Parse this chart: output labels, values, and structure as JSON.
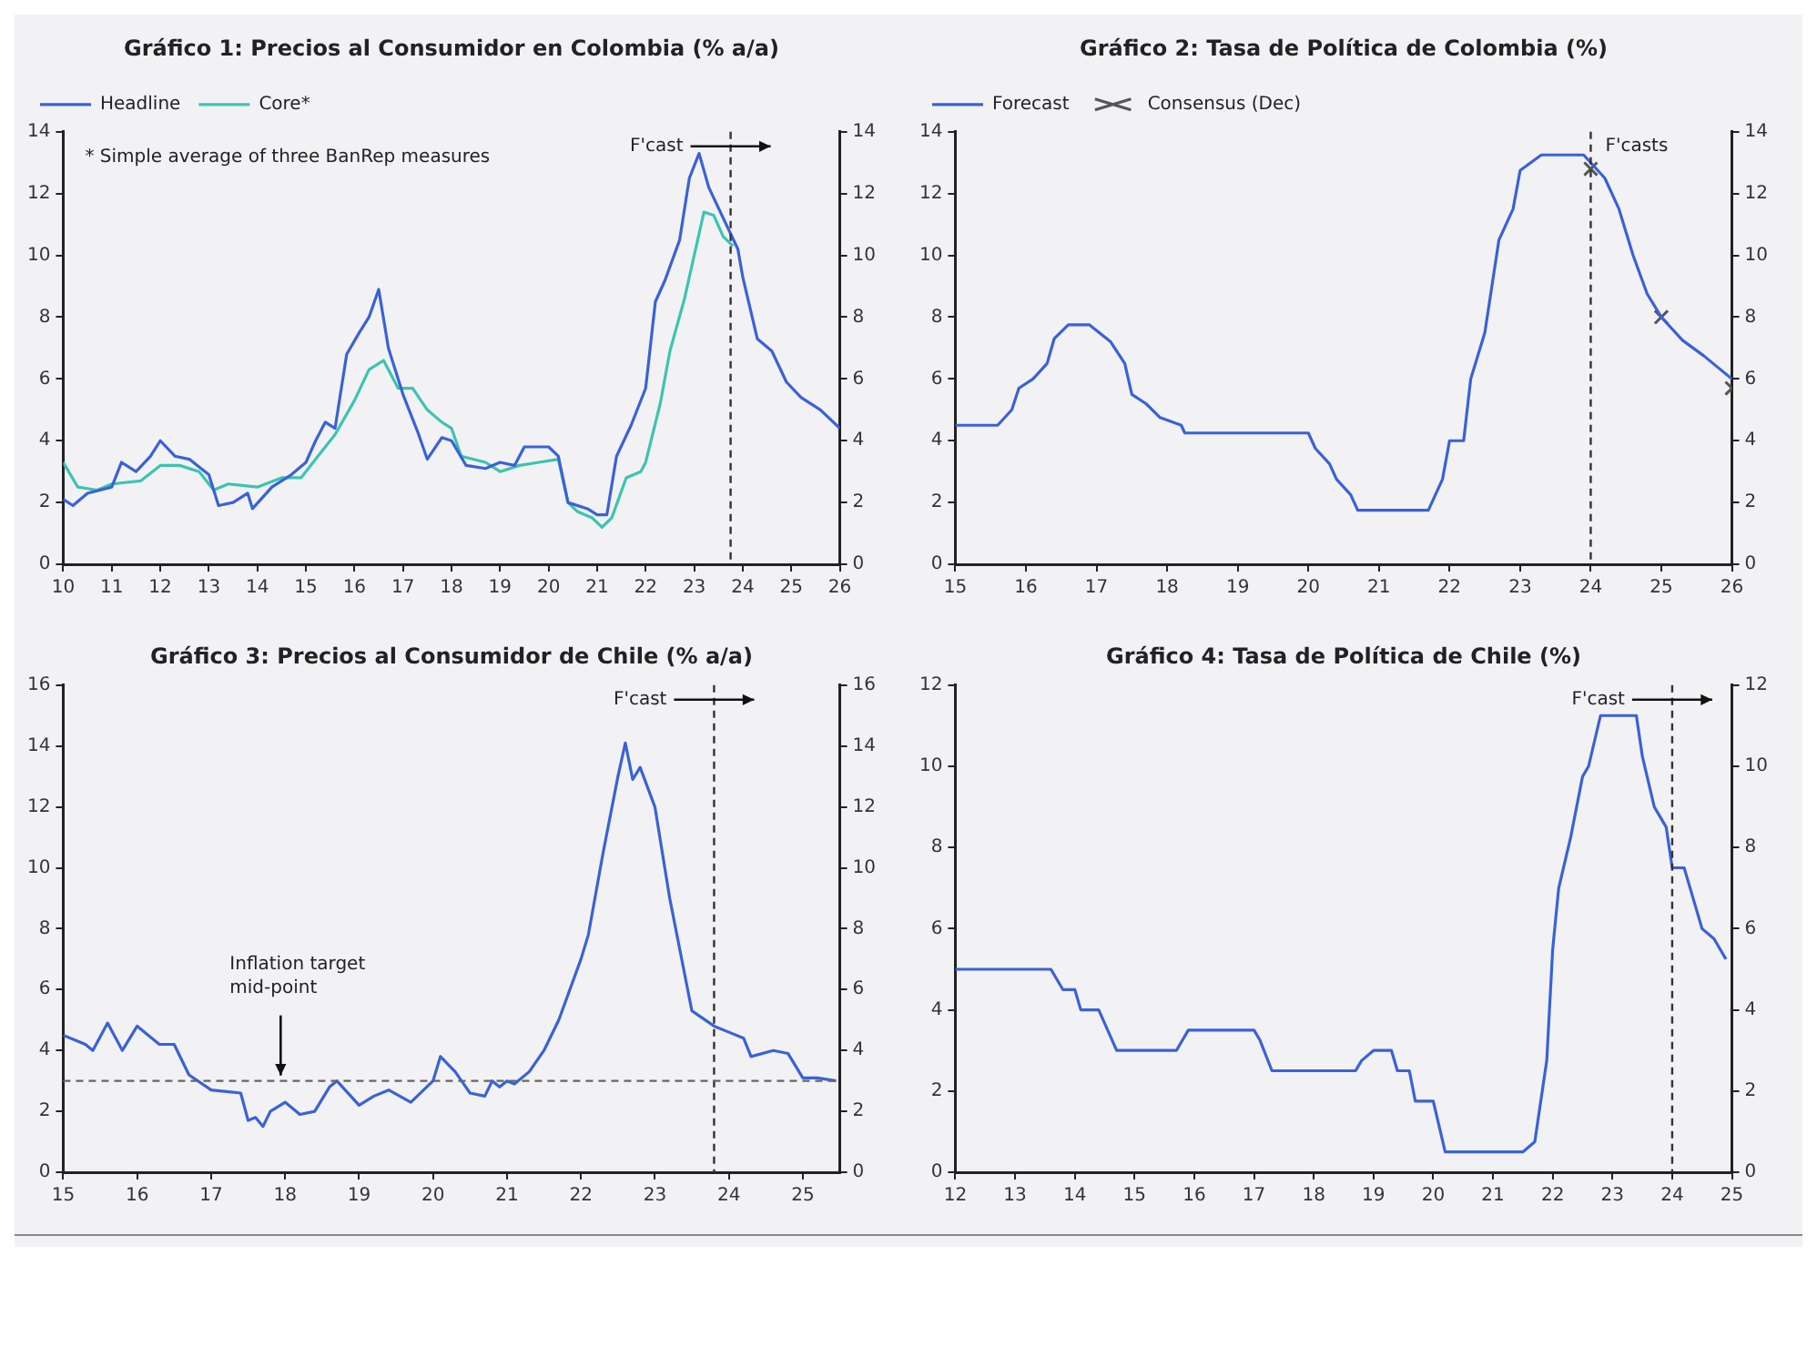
{
  "chart_data": [
    {
      "type": "line",
      "title": "Gráfico 1: Precios al Consumidor en Colombia (% a/a)",
      "xlim": [
        10,
        26
      ],
      "xticks": [
        10,
        11,
        12,
        13,
        14,
        15,
        16,
        17,
        18,
        19,
        20,
        21,
        22,
        23,
        24,
        25,
        26
      ],
      "ylim": [
        0,
        14
      ],
      "yticks": [
        0,
        2,
        4,
        6,
        8,
        10,
        12,
        14
      ],
      "y2lim": [
        0,
        14
      ],
      "y2ticks": [
        0,
        2,
        4,
        6,
        8,
        10,
        12,
        14
      ],
      "legend": "top left",
      "series": [
        {
          "name": "Headline",
          "color": "#3a62d6",
          "x": [
            10,
            10.2,
            10.5,
            11,
            11.2,
            11.5,
            11.8,
            12,
            12.3,
            12.6,
            13,
            13.2,
            13.5,
            13.8,
            13.9,
            14.3,
            14.7,
            15,
            15.2,
            15.4,
            15.6,
            15.84,
            16.1,
            16.3,
            16.5,
            16.7,
            17,
            17.3,
            17.5,
            17.8,
            18,
            18.3,
            18.7,
            19,
            19.3,
            19.5,
            20,
            20.2,
            20.4,
            20.8,
            21,
            21.2,
            21.4,
            21.7,
            22,
            22.2,
            22.4,
            22.7,
            22.9,
            23.1,
            23.3,
            23.6,
            23.9,
            24,
            24.3,
            24.6,
            24.9,
            25.2,
            25.6,
            26
          ],
          "values": [
            2.1,
            1.9,
            2.3,
            2.5,
            3.3,
            3,
            3.5,
            4,
            3.5,
            3.4,
            2.9,
            1.9,
            2,
            2.3,
            1.8,
            2.5,
            2.9,
            3.3,
            4,
            4.6,
            4.4,
            6.8,
            7.5,
            8,
            8.9,
            7,
            5.5,
            4.3,
            3.4,
            4.1,
            4,
            3.2,
            3.1,
            3.3,
            3.2,
            3.8,
            3.8,
            3.5,
            2,
            1.8,
            1.6,
            1.6,
            3.5,
            4.5,
            5.7,
            8.5,
            9.2,
            10.5,
            12.5,
            13.3,
            12.2,
            11.2,
            10.2,
            9.3,
            7.3,
            6.9,
            5.9,
            5.4,
            5,
            4.4
          ]
        },
        {
          "name": "Core*",
          "color": "#3cc4b0",
          "x": [
            10,
            10.3,
            10.7,
            11,
            11.6,
            12,
            12.4,
            12.8,
            13.1,
            13.4,
            14,
            14.5,
            14.9,
            15.2,
            15.6,
            16,
            16.3,
            16.6,
            16.9,
            17.2,
            17.5,
            17.8,
            18,
            18.2,
            18.7,
            19,
            19.4,
            19.8,
            20.2,
            20.4,
            20.6,
            20.9,
            21.1,
            21.3,
            21.6,
            21.9,
            22,
            22.3,
            22.5,
            22.8,
            23,
            23.2,
            23.4,
            23.6,
            23.8
          ],
          "values": [
            3.3,
            2.5,
            2.4,
            2.6,
            2.7,
            3.2,
            3.2,
            3,
            2.4,
            2.6,
            2.5,
            2.8,
            2.8,
            3.4,
            4.2,
            5.3,
            6.3,
            6.6,
            5.7,
            5.7,
            5,
            4.6,
            4.4,
            3.5,
            3.3,
            3,
            3.2,
            3.3,
            3.4,
            2,
            1.7,
            1.5,
            1.2,
            1.5,
            2.8,
            3,
            3.3,
            5.2,
            6.9,
            8.6,
            10,
            11.4,
            11.3,
            10.6,
            10.3
          ]
        }
      ],
      "ref_lines": [
        {
          "axis": "x",
          "value": 23.75,
          "label": "F'cast",
          "line_style": "dashed",
          "color": "#333333"
        }
      ],
      "annotations": [
        "* Simple average of three BanRep measures"
      ]
    },
    {
      "type": "line",
      "title": "Gráfico 2: Tasa de Política de Colombia (%)",
      "xlim": [
        15,
        26
      ],
      "xticks": [
        15,
        16,
        17,
        18,
        19,
        20,
        21,
        22,
        23,
        24,
        25,
        26
      ],
      "ylim": [
        0,
        14
      ],
      "yticks": [
        0,
        2,
        4,
        6,
        8,
        10,
        12,
        14
      ],
      "y2lim": [
        0,
        14
      ],
      "y2ticks": [
        0,
        2,
        4,
        6,
        8,
        10,
        12,
        14
      ],
      "legend": "top left",
      "series": [
        {
          "name": "Forecast",
          "color": "#3a62d6",
          "x": [
            15,
            15.6,
            15.8,
            15.9,
            16.1,
            16.3,
            16.4,
            16.6,
            16.9,
            17.2,
            17.4,
            17.5,
            17.7,
            17.9,
            18.2,
            18.25,
            20,
            20.1,
            20.3,
            20.4,
            20.6,
            20.7,
            21.7,
            21.9,
            22,
            22.2,
            22.3,
            22.5,
            22.6,
            22.7,
            22.9,
            23,
            23.3,
            23.9,
            24.2,
            24.4,
            24.6,
            24.8,
            25,
            25.3,
            25.6,
            26
          ],
          "values": [
            4.5,
            4.5,
            5,
            5.7,
            6,
            6.5,
            7.3,
            7.75,
            7.75,
            7.2,
            6.5,
            5.5,
            5.2,
            4.75,
            4.5,
            4.25,
            4.25,
            3.75,
            3.25,
            2.75,
            2.25,
            1.75,
            1.75,
            2.75,
            4,
            4,
            6,
            7.5,
            9,
            10.5,
            11.5,
            12.75,
            13.25,
            13.25,
            12.5,
            11.5,
            10,
            8.75,
            8,
            7.25,
            6.75,
            6
          ]
        },
        {
          "name": "Consensus (Dec)",
          "type": "scatter",
          "marker": "cross",
          "color": "#555555",
          "x": [
            24,
            25,
            26
          ],
          "values": [
            12.8,
            8,
            5.7
          ]
        }
      ],
      "ref_lines": [
        {
          "axis": "x",
          "value": 24,
          "line_style": "dashed",
          "color": "#333333"
        }
      ],
      "annotations": [
        "F'casts"
      ]
    },
    {
      "type": "line",
      "title": "Gráfico 3: Precios al Consumidor de Chile (% a/a)",
      "xlim": [
        15,
        25.5
      ],
      "xticks": [
        15,
        16,
        17,
        18,
        19,
        20,
        21,
        22,
        23,
        24,
        25
      ],
      "ylim": [
        0,
        16
      ],
      "yticks": [
        0,
        2,
        4,
        6,
        8,
        10,
        12,
        14,
        16
      ],
      "y2lim": [
        0,
        16
      ],
      "y2ticks": [
        0,
        2,
        4,
        6,
        8,
        10,
        12,
        14,
        16
      ],
      "series": [
        {
          "color": "#3a62d6",
          "x": [
            15,
            15.3,
            15.4,
            15.6,
            15.8,
            16,
            16.3,
            16.5,
            16.7,
            17,
            17.4,
            17.5,
            17.6,
            17.7,
            17.8,
            18,
            18.2,
            18.4,
            18.6,
            18.7,
            19,
            19.2,
            19.4,
            19.7,
            20,
            20.1,
            20.3,
            20.5,
            20.7,
            20.8,
            20.9,
            21,
            21.1,
            21.3,
            21.5,
            21.7,
            22,
            22.1,
            22.3,
            22.5,
            22.6,
            22.7,
            22.8,
            23,
            23.2,
            23.5,
            23.8,
            24,
            24.2,
            24.3,
            24.6,
            24.8,
            25,
            25.2,
            25.45
          ],
          "values": [
            4.5,
            4.2,
            4,
            4.9,
            4,
            4.8,
            4.2,
            4.2,
            3.2,
            2.7,
            2.6,
            1.7,
            1.8,
            1.5,
            2,
            2.3,
            1.9,
            2,
            2.8,
            3,
            2.2,
            2.5,
            2.7,
            2.3,
            3,
            3.8,
            3.3,
            2.6,
            2.5,
            3,
            2.8,
            3,
            2.9,
            3.3,
            4,
            5,
            7,
            7.8,
            10.5,
            13,
            14.1,
            12.9,
            13.3,
            12,
            9,
            5.3,
            4.8,
            4.6,
            4.4,
            3.8,
            4,
            3.9,
            3.1,
            3.1,
            3
          ]
        }
      ],
      "ref_lines": [
        {
          "axis": "x",
          "value": 23.8,
          "label": "F'cast",
          "line_style": "dashed",
          "color": "#333333"
        },
        {
          "axis": "y",
          "value": 3,
          "label": "Inflation target mid-point",
          "line_style": "dashed",
          "color": "#666666"
        }
      ]
    },
    {
      "type": "line",
      "title": "Gráfico 4: Tasa de Política de Chile (%)",
      "xlim": [
        12,
        25
      ],
      "xticks": [
        12,
        13,
        14,
        15,
        16,
        17,
        18,
        19,
        20,
        21,
        22,
        23,
        24,
        25
      ],
      "ylim": [
        0,
        12
      ],
      "yticks": [
        0,
        2,
        4,
        6,
        8,
        10,
        12
      ],
      "y2lim": [
        0,
        12
      ],
      "y2ticks": [
        0,
        2,
        4,
        6,
        8,
        10,
        12
      ],
      "series": [
        {
          "color": "#3a62d6",
          "x": [
            12,
            13.6,
            13.8,
            14,
            14.1,
            14.4,
            14.7,
            15.7,
            15.9,
            17,
            17.1,
            17.3,
            18.7,
            18.8,
            19,
            19.3,
            19.4,
            19.6,
            19.7,
            20,
            20.2,
            21.5,
            21.7,
            21.9,
            22,
            22.1,
            22.3,
            22.5,
            22.6,
            22.8,
            23.4,
            23.5,
            23.7,
            23.9,
            24,
            24.2,
            24.4,
            24.5,
            24.7,
            24.9
          ],
          "values": [
            5,
            5,
            4.5,
            4.5,
            4,
            4,
            3,
            3,
            3.5,
            3.5,
            3.25,
            2.5,
            2.5,
            2.75,
            3,
            3,
            2.5,
            2.5,
            1.75,
            1.75,
            0.5,
            0.5,
            0.75,
            2.75,
            5.5,
            7,
            8.25,
            9.75,
            10,
            11.25,
            11.25,
            10.25,
            9,
            8.5,
            7.5,
            7.5,
            6.5,
            6,
            5.75,
            5.25
          ]
        }
      ],
      "ref_lines": [
        {
          "axis": "x",
          "value": 24,
          "label": "F'cast",
          "line_style": "dashed",
          "color": "#333333"
        }
      ]
    }
  ]
}
